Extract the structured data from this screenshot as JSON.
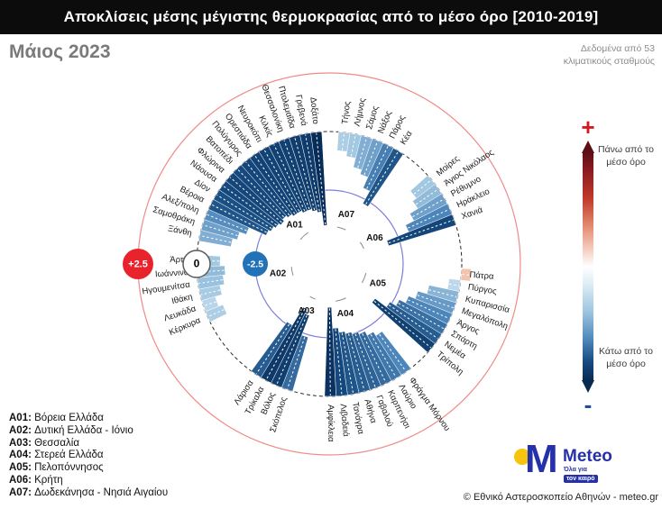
{
  "header": {
    "title": "Αποκλίσεις μέσης μέγιστης θερμοκρασίας από το μέσο όρο [2010-2019]"
  },
  "subtitle": "Μάιος 2023",
  "data_source": [
    "Δεδομένα από 53",
    "κλιματικούς σταθμούς"
  ],
  "color_scale": {
    "plus": "+",
    "minus": "-",
    "above_label": "Πάνω από το μέσο όρο",
    "below_label": "Κάτω από το μέσο όρο",
    "top_color": "#8c1b21",
    "bottom_color": "#0a2a52"
  },
  "axis_markers": [
    {
      "label": "+2.5",
      "color": "#e8232b",
      "text_color": "#ffffff"
    },
    {
      "label": "0",
      "color": "#ffffff",
      "text_color": "#000000"
    },
    {
      "label": "-2.5",
      "color": "#2272b8",
      "text_color": "#ffffff"
    }
  ],
  "logo": {
    "brand": "Meteo",
    "m_glyph": "M",
    "tagline_line1": "Όλα για",
    "tagline_line2": "τον καιρό"
  },
  "copyright": "© Εθνικό Αστεροσκοπείο Αθηνών - meteo.gr",
  "chart_data": {
    "type": "bar",
    "variant": "radial",
    "units": "°C",
    "title": "Αποκλίσεις μέσης μέγιστης θερμοκρασίας από το μέσο όρο [2010-2019]",
    "period": "Μάιος 2023",
    "stations_count": 53,
    "rings": [
      {
        "value": 2.5,
        "label": "+2.5",
        "color": "#ef8a8a"
      },
      {
        "value": 0,
        "label": "0",
        "color": "#2a2a2a",
        "style": "dashed"
      },
      {
        "value": -2.5,
        "label": "-2.5",
        "color": "#7d7ddb"
      }
    ],
    "positive_color": "#f2c3ad",
    "regions": [
      {
        "code": "A01",
        "name": "Βόρεια Ελλάδα",
        "stations": [
          {
            "name": "Ξάνθη",
            "value": -1.4
          },
          {
            "name": "Σαμοθράκη",
            "value": -1.6
          },
          {
            "name": "Αλεξ/πολη",
            "value": -1.9
          },
          {
            "name": "Βέροια",
            "value": -2.7
          },
          {
            "name": "Δίον",
            "value": -2.8
          },
          {
            "name": "Νάουσα",
            "value": -2.9
          },
          {
            "name": "Φλώρινα",
            "value": -3.0
          },
          {
            "name": "Βατοπέδι",
            "value": -2.9
          },
          {
            "name": "Πολύγυρος",
            "value": -3.0
          },
          {
            "name": "Ορεστιάδα",
            "value": -3.1
          },
          {
            "name": "Νευροκόπι",
            "value": -3.1
          },
          {
            "name": "Κιλκίς",
            "value": -3.2
          },
          {
            "name": "Θεσσαλονίκη",
            "value": -3.2
          },
          {
            "name": "Πτολεμαΐδα",
            "value": -3.3
          },
          {
            "name": "Γρεβενά",
            "value": -3.4
          },
          {
            "name": "Δοξάτο",
            "value": -4.0
          }
        ]
      },
      {
        "code": "A02",
        "name": "Δυτική Ελλάδα - Ιόνιο",
        "stations": [
          {
            "name": "Κέρκυρα",
            "value": -0.8
          },
          {
            "name": "Λευκάδα",
            "value": -0.6
          },
          {
            "name": "Ιθάκη",
            "value": -0.9
          },
          {
            "name": "Ηγουμενίτσα",
            "value": -1.1
          },
          {
            "name": "Ιωάννινα",
            "value": -1.2
          },
          {
            "name": "Άρτα",
            "value": -1.0
          }
        ]
      },
      {
        "code": "A03",
        "name": "Θεσσαλία",
        "stations": [
          {
            "name": "Σκόπελος",
            "value": -2.4
          },
          {
            "name": "Βόλος",
            "value": -3.3
          },
          {
            "name": "Τρίκαλα",
            "value": -3.5
          },
          {
            "name": "Λάρισα",
            "value": -2.6
          }
        ]
      },
      {
        "code": "A04",
        "name": "Στερεά Ελλάδα",
        "stations": [
          {
            "name": "Φράγμα Μόρνου",
            "value": -2.0
          },
          {
            "name": "Λαύριο",
            "value": -2.2
          },
          {
            "name": "Καρπενήσι",
            "value": -2.4
          },
          {
            "name": "Γαβαλού",
            "value": -2.5
          },
          {
            "name": "Αθήνα",
            "value": -2.6
          },
          {
            "name": "Τανάγρα",
            "value": -2.7
          },
          {
            "name": "Λιβαδειά",
            "value": -2.9
          },
          {
            "name": "Αμφίκλεια",
            "value": -3.8
          }
        ]
      },
      {
        "code": "A05",
        "name": "Πελοπόννησος",
        "stations": [
          {
            "name": "Πάτρα",
            "value": 0.4
          },
          {
            "name": "Πύργος",
            "value": -0.5
          },
          {
            "name": "Κυπαρισσία",
            "value": -1.3
          },
          {
            "name": "Μεγαλόπολη",
            "value": -1.7
          },
          {
            "name": "Άργος",
            "value": -2.0
          },
          {
            "name": "Σπάρτη",
            "value": -2.3
          },
          {
            "name": "Νεμέα",
            "value": -2.6
          },
          {
            "name": "Τρίπολη",
            "value": -3.2
          }
        ]
      },
      {
        "code": "A06",
        "name": "Κρήτη",
        "stations": [
          {
            "name": "Μοίρες",
            "value": -1.0
          },
          {
            "name": "Άγιος Νικόλαος",
            "value": -1.2
          },
          {
            "name": "Ρέθυμνο",
            "value": -1.6
          },
          {
            "name": "Ηράκλειο",
            "value": -2.0
          },
          {
            "name": "Χανιά",
            "value": -3.0
          }
        ]
      },
      {
        "code": "A07",
        "name": "Δωδεκάνησα - Νησιά Αιγαίου",
        "stations": [
          {
            "name": "Τήνος",
            "value": -0.8
          },
          {
            "name": "Λήμνος",
            "value": -1.0
          },
          {
            "name": "Σάμος",
            "value": -1.4
          },
          {
            "name": "Νάξος",
            "value": -1.6
          },
          {
            "name": "Πάρος",
            "value": -2.1
          },
          {
            "name": "Κέα",
            "value": -2.7
          }
        ]
      }
    ]
  }
}
